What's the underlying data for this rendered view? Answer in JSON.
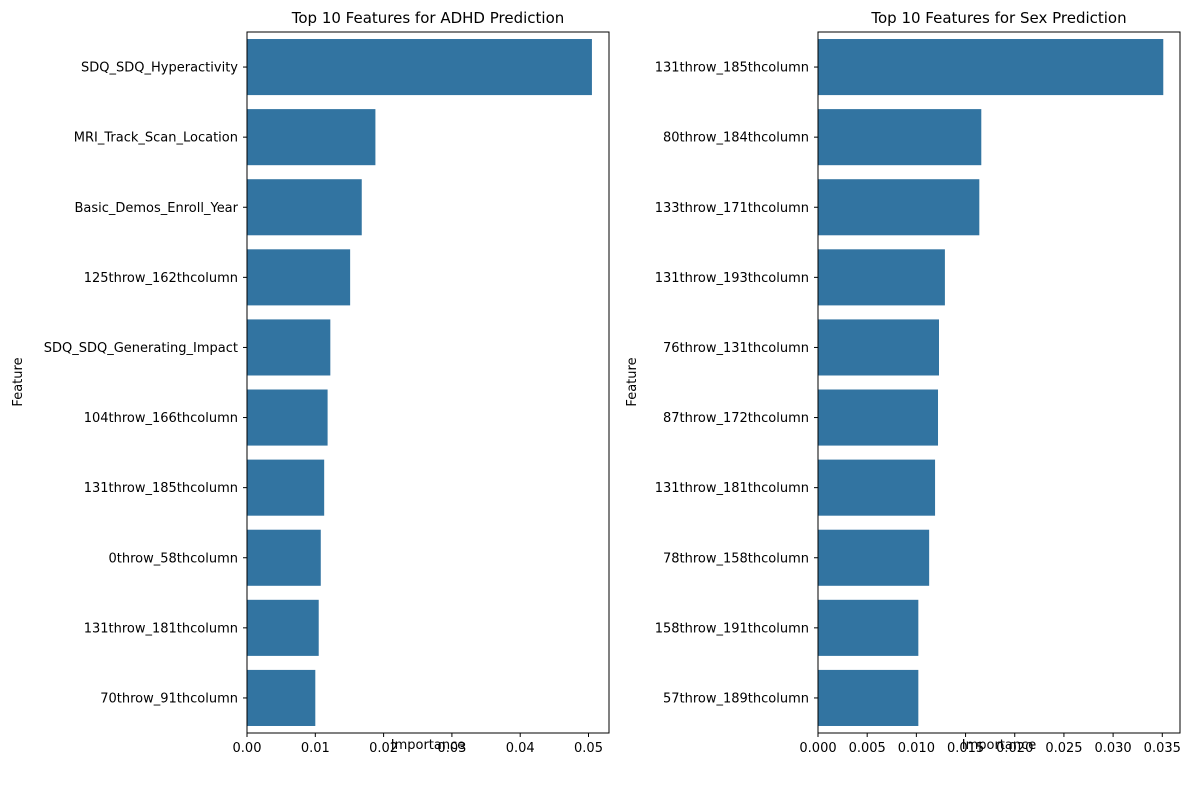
{
  "chart_data": [
    {
      "type": "bar",
      "orientation": "horizontal",
      "title": "Top 10 Features for ADHD Prediction",
      "xlabel": "Importance",
      "ylabel": "Feature",
      "xlim": [
        0,
        0.053
      ],
      "xticks": [
        0.0,
        0.01,
        0.02,
        0.03,
        0.04,
        0.05
      ],
      "xtick_labels": [
        "0.00",
        "0.01",
        "0.02",
        "0.03",
        "0.04",
        "0.05"
      ],
      "categories": [
        "SDQ_SDQ_Hyperactivity",
        "MRI_Track_Scan_Location",
        "Basic_Demos_Enroll_Year",
        "125throw_162thcolumn",
        "SDQ_SDQ_Generating_Impact",
        "104throw_166thcolumn",
        "131throw_185thcolumn",
        "0throw_58thcolumn",
        "131throw_181thcolumn",
        "70throw_91thcolumn"
      ],
      "values": [
        0.0505,
        0.0188,
        0.0168,
        0.0151,
        0.0122,
        0.0118,
        0.0113,
        0.0108,
        0.0105,
        0.01
      ],
      "bar_color": "#3274a1",
      "grid": false,
      "legend": "none"
    },
    {
      "type": "bar",
      "orientation": "horizontal",
      "title": "Top 10 Features for Sex Prediction",
      "xlabel": "Importance",
      "ylabel": "Feature",
      "xlim": [
        0,
        0.0368
      ],
      "xticks": [
        0.0,
        0.005,
        0.01,
        0.015,
        0.02,
        0.025,
        0.03,
        0.035
      ],
      "xtick_labels": [
        "0.000",
        "0.005",
        "0.010",
        "0.015",
        "0.020",
        "0.025",
        "0.030",
        "0.035"
      ],
      "categories": [
        "131throw_185thcolumn",
        "80throw_184thcolumn",
        "133throw_171thcolumn",
        "131throw_193thcolumn",
        "76throw_131thcolumn",
        "87throw_172thcolumn",
        "131throw_181thcolumn",
        "78throw_158thcolumn",
        "158throw_191thcolumn",
        "57throw_189thcolumn"
      ],
      "values": [
        0.0351,
        0.0166,
        0.0164,
        0.0129,
        0.0123,
        0.0122,
        0.0119,
        0.0113,
        0.0102,
        0.0102
      ],
      "bar_color": "#3274a1",
      "grid": false,
      "legend": "none"
    }
  ]
}
